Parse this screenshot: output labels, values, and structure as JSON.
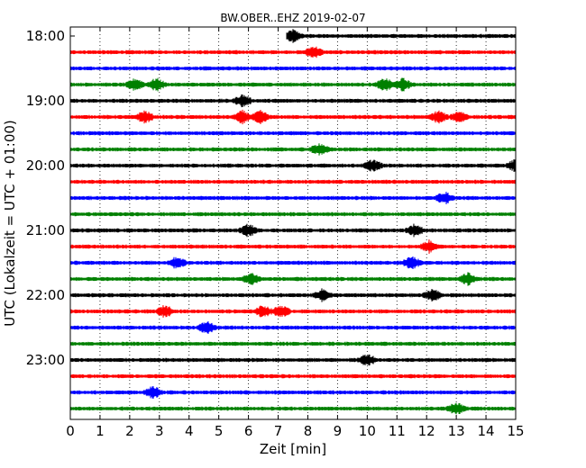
{
  "chart_data": {
    "type": "line",
    "title": "BW.OBER..EHZ 2019-02-07",
    "xlabel": "Zeit  [min]",
    "ylabel": "UTC (Lokalzeit = UTC + 01:00)",
    "xlim": [
      0,
      15
    ],
    "x_ticks": [
      "0",
      "1",
      "2",
      "3",
      "4",
      "5",
      "6",
      "7",
      "8",
      "9",
      "10",
      "11",
      "12",
      "13",
      "14",
      "15"
    ],
    "y_tick_labels": [
      "18:00",
      "19:00",
      "20:00",
      "21:00",
      "22:00",
      "23:00"
    ],
    "grid": "vertical dotted",
    "trace_colors": [
      "#000000",
      "#ff0000",
      "#0000ff",
      "#008000"
    ],
    "traces": [
      {
        "time": "18:00",
        "start_min": 7.3,
        "bursts": [
          7.5
        ]
      },
      {
        "time": "18:15",
        "start_min": 0,
        "bursts": [
          8.2
        ]
      },
      {
        "time": "18:30",
        "start_min": 0,
        "bursts": []
      },
      {
        "time": "18:45",
        "start_min": 0,
        "bursts": [
          2.2,
          2.9,
          10.6,
          11.2
        ]
      },
      {
        "time": "19:00",
        "start_min": 0,
        "bursts": [
          5.8
        ]
      },
      {
        "time": "19:15",
        "start_min": 0,
        "bursts": [
          2.5,
          5.8,
          6.4,
          12.4,
          13.1
        ]
      },
      {
        "time": "19:30",
        "start_min": 0,
        "bursts": []
      },
      {
        "time": "19:45",
        "start_min": 0,
        "bursts": [
          8.4
        ]
      },
      {
        "time": "20:00",
        "start_min": 0,
        "bursts": [
          10.2,
          15.0
        ]
      },
      {
        "time": "20:15",
        "start_min": 0,
        "bursts": []
      },
      {
        "time": "20:30",
        "start_min": 0,
        "bursts": [
          12.6
        ]
      },
      {
        "time": "20:45",
        "start_min": 0,
        "bursts": []
      },
      {
        "time": "21:00",
        "start_min": 0,
        "bursts": [
          6.0,
          11.6
        ]
      },
      {
        "time": "21:15",
        "start_min": 0,
        "bursts": [
          12.1
        ]
      },
      {
        "time": "21:30",
        "start_min": 0,
        "bursts": [
          3.6,
          11.5
        ]
      },
      {
        "time": "21:45",
        "start_min": 0,
        "bursts": [
          6.1,
          13.4
        ]
      },
      {
        "time": "22:00",
        "start_min": 0,
        "bursts": [
          8.5,
          12.2
        ]
      },
      {
        "time": "22:15",
        "start_min": 0,
        "bursts": [
          3.2,
          6.5,
          7.1
        ]
      },
      {
        "time": "22:30",
        "start_min": 0,
        "bursts": [
          4.6
        ]
      },
      {
        "time": "22:45",
        "start_min": 0,
        "bursts": []
      },
      {
        "time": "23:00",
        "start_min": 0,
        "bursts": [
          10.0
        ]
      },
      {
        "time": "23:15",
        "start_min": 0,
        "bursts": []
      },
      {
        "time": "23:30",
        "start_min": 0,
        "bursts": [
          2.8
        ]
      },
      {
        "time": "23:45",
        "start_min": 0,
        "bursts": [
          13.0
        ]
      }
    ]
  }
}
